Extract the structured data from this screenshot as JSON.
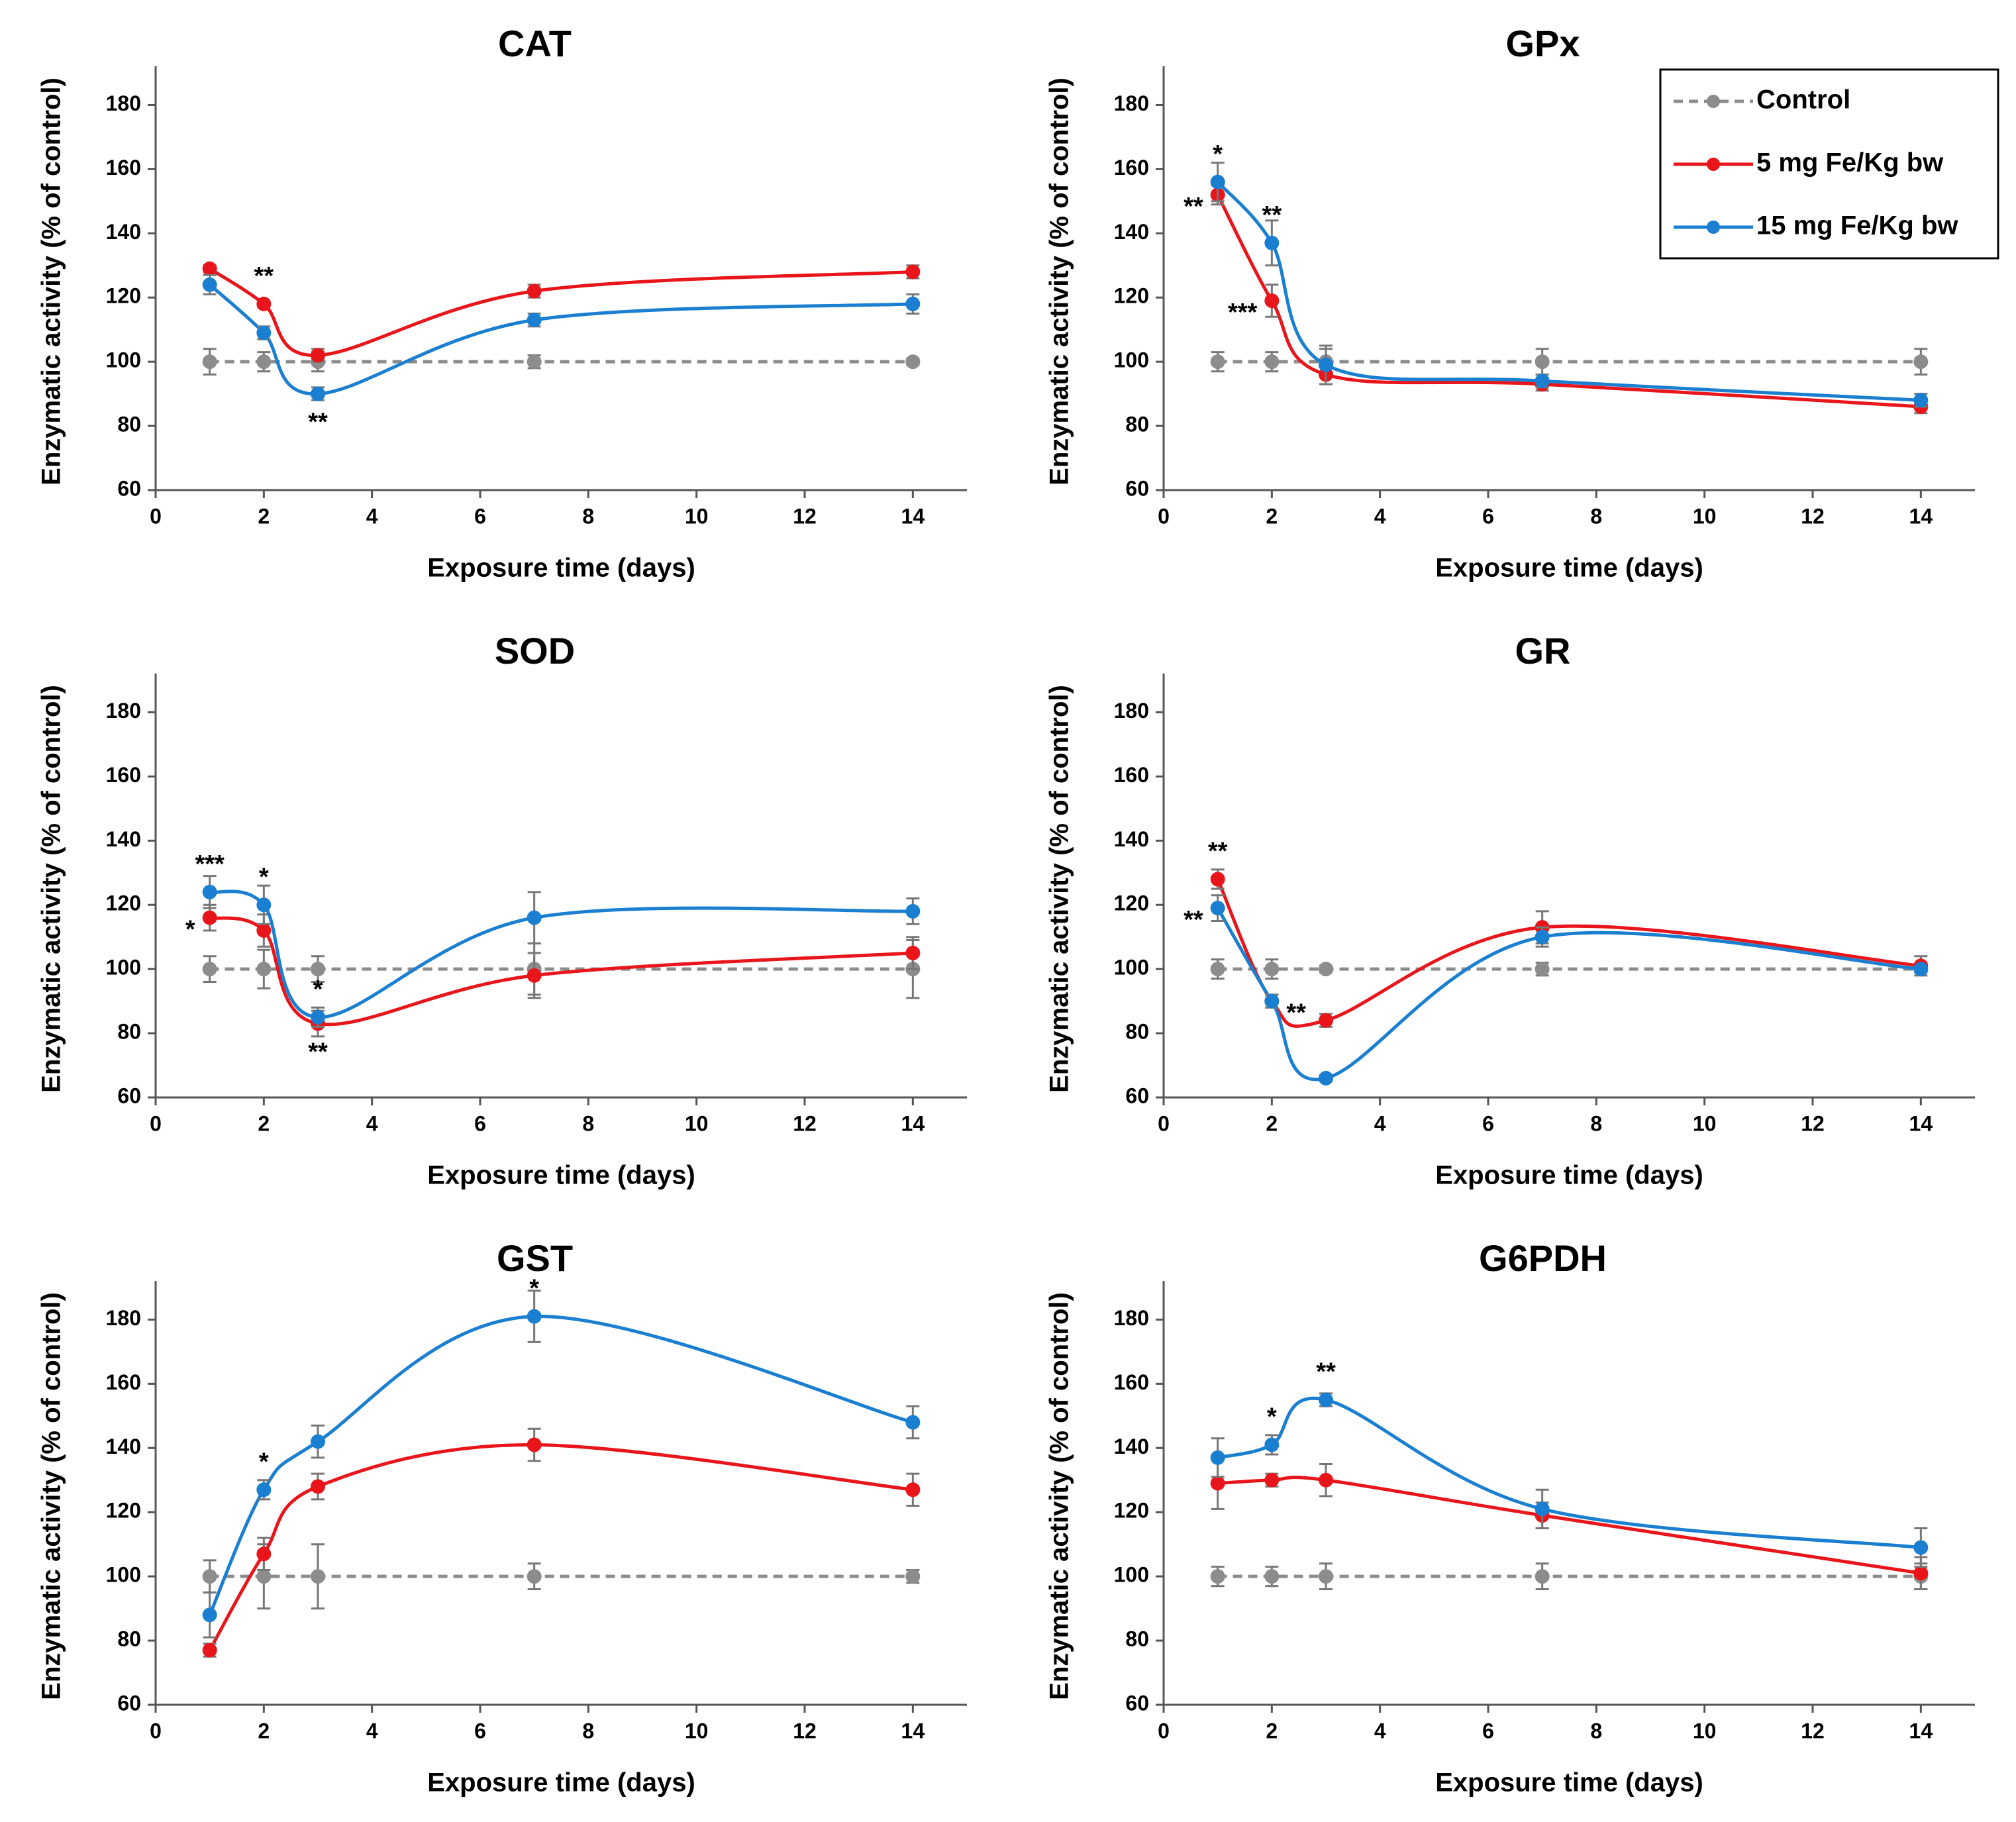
{
  "chart_data": [
    {
      "type": "line",
      "title": "CAT",
      "xlabel": "Exposure time (days)",
      "ylabel": "Enzymatic activity (% of control)",
      "x": [
        1,
        2,
        3,
        7,
        14
      ],
      "xlim": [
        0,
        15
      ],
      "xticks": [
        0,
        2,
        4,
        6,
        8,
        10,
        12,
        14
      ],
      "ylim": [
        60,
        190
      ],
      "yticks": [
        60,
        80,
        100,
        120,
        140,
        160,
        180
      ],
      "series": [
        {
          "color": "#8c8c8c",
          "linestyle": "dashed",
          "values": [
            100,
            100,
            100,
            100,
            100
          ],
          "errors": [
            4,
            3,
            3,
            2,
            1
          ]
        },
        {
          "color": "#e8151b",
          "linestyle": "solid",
          "values": [
            129,
            118,
            102,
            122,
            128
          ],
          "errors": [
            1,
            1,
            2,
            2,
            2
          ]
        },
        {
          "color": "#1a7fd0",
          "linestyle": "solid",
          "values": [
            124,
            109,
            90,
            113,
            118
          ],
          "errors": [
            3,
            2,
            2,
            2,
            3
          ]
        }
      ],
      "annotations": [
        {
          "text": "**",
          "x": 2,
          "y": 118,
          "position": "above"
        },
        {
          "text": "**",
          "x": 3,
          "y": 90,
          "position": "below"
        }
      ]
    },
    {
      "type": "line",
      "title": "GPx",
      "xlabel": "Exposure time (days)",
      "ylabel": "Enzymatic activity (% of control)",
      "x": [
        1,
        2,
        3,
        7,
        14
      ],
      "xlim": [
        0,
        15
      ],
      "xticks": [
        0,
        2,
        4,
        6,
        8,
        10,
        12,
        14
      ],
      "ylim": [
        60,
        190
      ],
      "yticks": [
        60,
        80,
        100,
        120,
        140,
        160,
        180
      ],
      "legend": "upper right",
      "series": [
        {
          "name": "Control",
          "color": "#8c8c8c",
          "linestyle": "dashed",
          "values": [
            100,
            100,
            100,
            100,
            100
          ],
          "errors": [
            3,
            3,
            4,
            4,
            4
          ]
        },
        {
          "name": "5 mg Fe/Kg bw",
          "color": "#e8151b",
          "linestyle": "solid",
          "values": [
            152,
            119,
            96,
            93,
            86
          ],
          "errors": [
            3,
            5,
            3,
            2,
            2
          ]
        },
        {
          "name": "15 mg Fe/Kg bw",
          "color": "#1a7fd0",
          "linestyle": "solid",
          "values": [
            156,
            137,
            99,
            94,
            88
          ],
          "errors": [
            6,
            7,
            6,
            2,
            2
          ]
        }
      ],
      "annotations": [
        {
          "text": "*",
          "x": 1,
          "y": 156,
          "position": "above"
        },
        {
          "text": "**",
          "x": 1,
          "y": 152,
          "position": "left"
        },
        {
          "text": "**",
          "x": 2,
          "y": 137,
          "position": "above"
        },
        {
          "text": "***",
          "x": 2,
          "y": 119,
          "position": "left"
        }
      ]
    },
    {
      "type": "line",
      "title": "SOD",
      "xlabel": "Exposure time (days)",
      "ylabel": "Enzymatic activity (% of control)",
      "x": [
        1,
        2,
        3,
        7,
        14
      ],
      "xlim": [
        0,
        15
      ],
      "xticks": [
        0,
        2,
        4,
        6,
        8,
        10,
        12,
        14
      ],
      "ylim": [
        60,
        190
      ],
      "yticks": [
        60,
        80,
        100,
        120,
        140,
        160,
        180
      ],
      "series": [
        {
          "color": "#8c8c8c",
          "linestyle": "dashed",
          "values": [
            100,
            100,
            100,
            100,
            100
          ],
          "errors": [
            4,
            6,
            4,
            8,
            9
          ]
        },
        {
          "color": "#e8151b",
          "linestyle": "solid",
          "values": [
            116,
            112,
            83,
            98,
            105
          ],
          "errors": [
            4,
            5,
            4,
            7,
            5
          ]
        },
        {
          "color": "#1a7fd0",
          "linestyle": "solid",
          "values": [
            124,
            120,
            85,
            116,
            118
          ],
          "errors": [
            5,
            6,
            3,
            8,
            4
          ]
        }
      ],
      "annotations": [
        {
          "text": "***",
          "x": 1,
          "y": 124,
          "position": "above"
        },
        {
          "text": "*",
          "x": 1,
          "y": 116,
          "position": "left"
        },
        {
          "text": "*",
          "x": 2,
          "y": 120,
          "position": "above"
        },
        {
          "text": "*",
          "x": 3,
          "y": 85,
          "position": "above"
        },
        {
          "text": "**",
          "x": 3,
          "y": 83,
          "position": "below"
        }
      ]
    },
    {
      "type": "line",
      "title": "GR",
      "xlabel": "Exposure time (days)",
      "ylabel": "Enzymatic activity (% of control)",
      "x": [
        1,
        2,
        3,
        7,
        14
      ],
      "xlim": [
        0,
        15
      ],
      "xticks": [
        0,
        2,
        4,
        6,
        8,
        10,
        12,
        14
      ],
      "ylim": [
        60,
        190
      ],
      "yticks": [
        60,
        80,
        100,
        120,
        140,
        160,
        180
      ],
      "series": [
        {
          "color": "#8c8c8c",
          "linestyle": "dashed",
          "values": [
            100,
            100,
            100,
            100,
            100
          ],
          "errors": [
            3,
            3,
            1,
            2,
            1
          ]
        },
        {
          "color": "#e8151b",
          "linestyle": "solid",
          "values": [
            128,
            90,
            84,
            113,
            101
          ],
          "errors": [
            3,
            2,
            2,
            5,
            3
          ]
        },
        {
          "color": "#1a7fd0",
          "linestyle": "solid",
          "values": [
            119,
            90,
            66,
            110,
            100
          ],
          "errors": [
            4,
            2,
            1,
            3,
            1
          ]
        }
      ],
      "annotations": [
        {
          "text": "**",
          "x": 1,
          "y": 128,
          "position": "above"
        },
        {
          "text": "**",
          "x": 1,
          "y": 119,
          "position": "left"
        },
        {
          "text": "**",
          "x": 2,
          "y": 90,
          "position": "right"
        }
      ]
    },
    {
      "type": "line",
      "title": "GST",
      "xlabel": "Exposure time (days)",
      "ylabel": "Enzymatic activity (% of control)",
      "x": [
        1,
        2,
        3,
        7,
        14
      ],
      "xlim": [
        0,
        15
      ],
      "xticks": [
        0,
        2,
        4,
        6,
        8,
        10,
        12,
        14
      ],
      "ylim": [
        60,
        190
      ],
      "yticks": [
        60,
        80,
        100,
        120,
        140,
        160,
        180
      ],
      "series": [
        {
          "color": "#8c8c8c",
          "linestyle": "dashed",
          "values": [
            100,
            100,
            100,
            100,
            100
          ],
          "errors": [
            5,
            10,
            10,
            4,
            2
          ]
        },
        {
          "color": "#e8151b",
          "linestyle": "solid",
          "values": [
            77,
            107,
            128,
            141,
            127
          ],
          "errors": [
            2,
            5,
            4,
            5,
            5
          ]
        },
        {
          "color": "#1a7fd0",
          "linestyle": "solid",
          "values": [
            88,
            127,
            142,
            181,
            148
          ],
          "errors": [
            7,
            3,
            5,
            8,
            5
          ]
        }
      ],
      "annotations": [
        {
          "text": "*",
          "x": 2,
          "y": 127,
          "position": "above"
        },
        {
          "text": "*",
          "x": 7,
          "y": 181,
          "position": "above"
        }
      ]
    },
    {
      "type": "line",
      "title": "G6PDH",
      "xlabel": "Exposure time (days)",
      "ylabel": "Enzymatic activity (% of control)",
      "x": [
        1,
        2,
        3,
        7,
        14
      ],
      "xlim": [
        0,
        15
      ],
      "xticks": [
        0,
        2,
        4,
        6,
        8,
        10,
        12,
        14
      ],
      "ylim": [
        60,
        190
      ],
      "yticks": [
        60,
        80,
        100,
        120,
        140,
        160,
        180
      ],
      "series": [
        {
          "color": "#8c8c8c",
          "linestyle": "dashed",
          "values": [
            100,
            100,
            100,
            100,
            100
          ],
          "errors": [
            3,
            3,
            4,
            4,
            4
          ]
        },
        {
          "color": "#e8151b",
          "linestyle": "solid",
          "values": [
            129,
            130,
            130,
            119,
            101
          ],
          "errors": [
            8,
            2,
            5,
            4,
            5
          ]
        },
        {
          "color": "#1a7fd0",
          "linestyle": "solid",
          "values": [
            137,
            141,
            155,
            121,
            109
          ],
          "errors": [
            6,
            3,
            2,
            6,
            6
          ]
        }
      ],
      "annotations": [
        {
          "text": "*",
          "x": 2,
          "y": 141,
          "position": "above"
        },
        {
          "text": "**",
          "x": 3,
          "y": 155,
          "position": "above"
        }
      ]
    }
  ]
}
